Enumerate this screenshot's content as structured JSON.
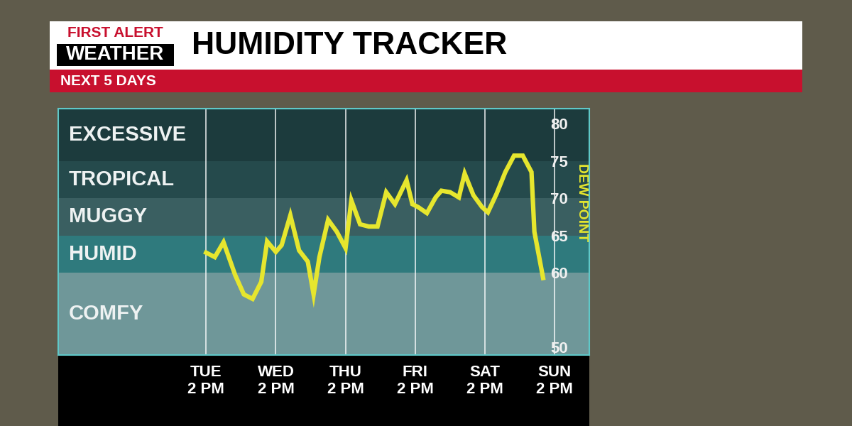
{
  "branding": [
    "FIRST ALERT",
    "WEATHER"
  ],
  "chart_data": {
    "type": "line",
    "title": "HUMIDITY TRACKER",
    "subtitle": "NEXT 5 DAYS",
    "y_label": "DEW POINT",
    "x": [
      0,
      3,
      6,
      10,
      13,
      16,
      19,
      21,
      24,
      26,
      29,
      32,
      35,
      37,
      39,
      42,
      45,
      48,
      50,
      53,
      56,
      59,
      62,
      65,
      69,
      71,
      73,
      76,
      79,
      81,
      84,
      87,
      89,
      92,
      95,
      97,
      100,
      103,
      106,
      109,
      112,
      113,
      116
    ],
    "values": [
      62.7,
      62.1,
      64.1,
      59.7,
      57.1,
      56.5,
      58.8,
      64.2,
      62.8,
      63.7,
      67.7,
      63.0,
      61.5,
      57.1,
      62.1,
      67.1,
      65.5,
      63.3,
      69.7,
      66.5,
      66.2,
      66.2,
      70.8,
      69.2,
      72.4,
      69.2,
      68.8,
      68.0,
      70.1,
      71.0,
      70.8,
      70.1,
      73.3,
      70.4,
      68.8,
      68.1,
      70.6,
      73.5,
      75.7,
      75.7,
      73.5,
      65.5,
      59.3
    ],
    "color": "#e6e62e",
    "xlim": [
      -51,
      132
    ],
    "xticks": [
      {
        "value": 0,
        "label": "TUE\n2 PM"
      },
      {
        "value": 24,
        "label": "WED\n2 PM"
      },
      {
        "value": 48,
        "label": "THU\n2 PM"
      },
      {
        "value": 72,
        "label": "FRI\n2 PM"
      },
      {
        "value": 96,
        "label": "SAT\n2 PM"
      },
      {
        "value": 120,
        "label": "SUN\n2 PM"
      }
    ],
    "ylim": [
      49,
      82
    ],
    "yticks": [
      50,
      60,
      65,
      70,
      75,
      80
    ],
    "grid": true,
    "bands": [
      {
        "label": "EXCESSIVE",
        "from": 75,
        "to": 82,
        "color": "#1c3b3d"
      },
      {
        "label": "TROPICAL",
        "from": 70,
        "to": 75,
        "color": "#254a4c"
      },
      {
        "label": "MUGGY",
        "from": 65,
        "to": 70,
        "color": "#3a5f61"
      },
      {
        "label": "HUMID",
        "from": 60,
        "to": 65,
        "color": "#2f7a7d"
      },
      {
        "label": "COMFY",
        "from": 49,
        "to": 60,
        "color": "#6f9799"
      }
    ]
  }
}
